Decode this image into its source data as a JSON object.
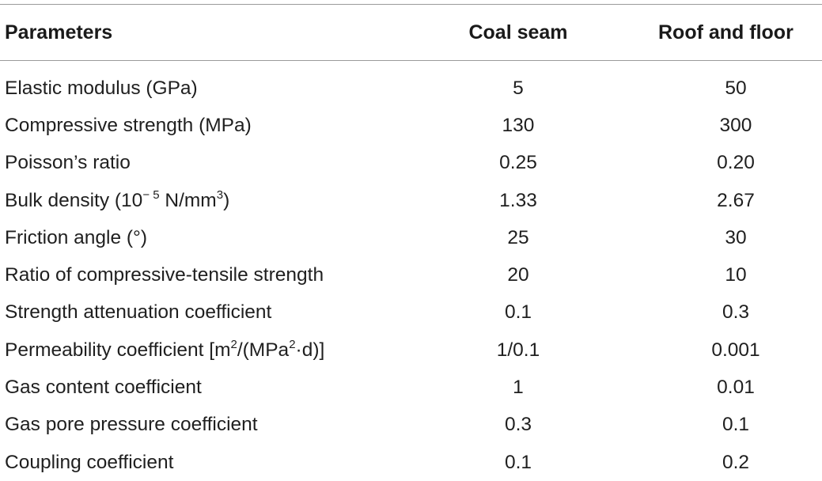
{
  "table": {
    "headers": {
      "parameters": "Parameters",
      "coal_seam": "Coal seam",
      "roof_and_floor": "Roof and floor"
    },
    "rows": [
      {
        "parameter": "Elastic modulus (GPa)",
        "coal_seam": "5",
        "roof_and_floor": "50"
      },
      {
        "parameter": "Compressive strength (MPa)",
        "coal_seam": "130",
        "roof_and_floor": "300"
      },
      {
        "parameter": "Poisson’s ratio",
        "coal_seam": "0.25",
        "roof_and_floor": "0.20"
      },
      {
        "parameter_parts": [
          "Bulk density (10",
          "− 5",
          " N/mm",
          "3",
          ")"
        ],
        "coal_seam": "1.33",
        "roof_and_floor": "2.67"
      },
      {
        "parameter": "Friction angle (°)",
        "coal_seam": "25",
        "roof_and_floor": "30"
      },
      {
        "parameter": "Ratio of compressive-tensile strength",
        "coal_seam": "20",
        "roof_and_floor": "10"
      },
      {
        "parameter": "Strength attenuation coefficient",
        "coal_seam": "0.1",
        "roof_and_floor": "0.3"
      },
      {
        "parameter_parts": [
          "Permeability coefficient [m",
          "2",
          "/(MPa",
          "2",
          "·d)]"
        ],
        "coal_seam": "1/0.1",
        "roof_and_floor": "0.001"
      },
      {
        "parameter": "Gas content coefficient",
        "coal_seam": "1",
        "roof_and_floor": "0.01"
      },
      {
        "parameter": "Gas pore pressure coefficient",
        "coal_seam": "0.3",
        "roof_and_floor": "0.1"
      },
      {
        "parameter": "Coupling coefficient",
        "coal_seam": "0.1",
        "roof_and_floor": "0.2"
      }
    ]
  }
}
